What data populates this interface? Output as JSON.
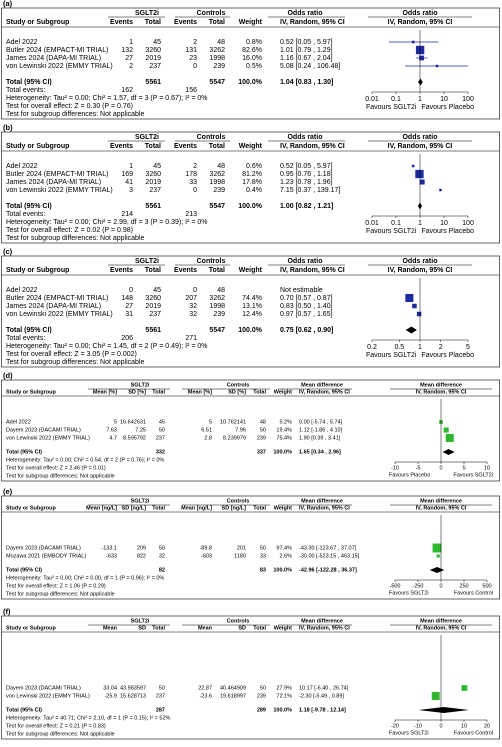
{
  "chart_data": [
    {
      "type": "forest",
      "panel_label": "(a)",
      "scale": "log",
      "color": "#1c2a9e",
      "group_headers": [
        "SGLT2i",
        "Controls",
        "Odds ratio",
        "Odds ratio"
      ],
      "columns": [
        "Study or Subgroup",
        "Events",
        "Total",
        "Events",
        "Total",
        "Weight",
        "IV, Random, 95% CI",
        "IV, Random, 95% CI"
      ],
      "studies": [
        {
          "name": "Adel 2022",
          "cells": [
            1,
            45,
            2,
            48
          ],
          "weight": 0.8,
          "weight_label": "0.8%",
          "estimate": 0.52,
          "ci": [
            0.05,
            5.97
          ],
          "ci_label": "0.52 [0.05 , 5.97]"
        },
        {
          "name": "Butler 2024 (EMPACT-MI TRIAL)",
          "cells": [
            132,
            3260,
            131,
            3262
          ],
          "weight": 82.6,
          "weight_label": "82.6%",
          "estimate": 1.01,
          "ci": [
            0.79,
            1.29
          ],
          "ci_label": "1.01 [0.79 , 1.29]"
        },
        {
          "name": "James 2024 (DAPA-MI TRIAL)",
          "cells": [
            27,
            2019,
            23,
            1998
          ],
          "weight": 16.0,
          "weight_label": "16.0%",
          "estimate": 1.16,
          "ci": [
            0.67,
            2.04
          ],
          "ci_label": "1.16 [0.67 , 2.04]"
        },
        {
          "name": "von Lewinski 2022 (EMMY TRIAL)",
          "cells": [
            2,
            237,
            0,
            239
          ],
          "weight": 0.5,
          "weight_label": "0.5%",
          "estimate": 5.08,
          "ci": [
            0.24,
            106.48
          ],
          "ci_label": "5.08 [0.24 , 106.48]"
        }
      ],
      "total": {
        "name": "Total (95% CI)",
        "cells": [
          null,
          5561,
          null,
          5547
        ],
        "weight": 100,
        "weight_label": "100.0%",
        "estimate": 1.04,
        "ci": [
          0.83,
          1.3
        ],
        "ci_label": "1.04 [0.83 , 1.30]"
      },
      "total_events": {
        "name": "Total events:",
        "cells": [
          162,
          null,
          156,
          null
        ]
      },
      "footnotes": [
        "Heterogeneity: Tau² = 0.00; Chi² = 1.57, df = 3 (P = 0.67); I² = 0%",
        "Test for overall effect: Z = 0.30 (P = 0.76)",
        "Test for subgroup differences: Not applicable"
      ],
      "xlim": [
        0.01,
        100
      ],
      "xticks": [
        0.01,
        0.1,
        1,
        10,
        100
      ],
      "favours": [
        "Favours SGLT2i",
        "Favours Placebo"
      ]
    },
    {
      "type": "forest",
      "panel_label": "(b)",
      "scale": "log",
      "color": "#1c2a9e",
      "group_headers": [
        "SGLT2i",
        "Controls",
        "Odds ratio",
        "Odds ratio"
      ],
      "columns": [
        "Study or Subgroup",
        "Events",
        "Total",
        "Events",
        "Total",
        "Weight",
        "IV, Random, 95% CI",
        "IV, Random, 95% CI"
      ],
      "studies": [
        {
          "name": "Adel 2022",
          "cells": [
            1,
            45,
            2,
            48
          ],
          "weight": 0.6,
          "weight_label": "0.6%",
          "estimate": 0.52,
          "ci": [
            0.05,
            5.97
          ],
          "ci_label": "0.52 [0.05 , 5.97]"
        },
        {
          "name": "Butler 2024 (EMPACT-MI TRIAL)",
          "cells": [
            169,
            3260,
            178,
            3262
          ],
          "weight": 81.2,
          "weight_label": "81.2%",
          "estimate": 0.95,
          "ci": [
            0.76,
            1.18
          ],
          "ci_label": "0.95 [0.76 , 1.18]"
        },
        {
          "name": "James 2024 (DAPA-MI TRIAL)",
          "cells": [
            41,
            2019,
            33,
            1998
          ],
          "weight": 17.8,
          "weight_label": "17.8%",
          "estimate": 1.23,
          "ci": [
            0.78,
            1.96
          ],
          "ci_label": "1.23 [0.78 , 1.96]"
        },
        {
          "name": "von Lewinski 2022 (EMMY TRIAL)",
          "cells": [
            3,
            237,
            0,
            239
          ],
          "weight": 0.4,
          "weight_label": "0.4%",
          "estimate": 7.15,
          "ci": [
            0.37,
            139.17
          ],
          "ci_label": "7.15 [0.37 , 139.17]"
        }
      ],
      "total": {
        "name": "Total (95% CI)",
        "cells": [
          null,
          5561,
          null,
          5547
        ],
        "weight": 100,
        "weight_label": "100.0%",
        "estimate": 1.0,
        "ci": [
          0.82,
          1.21
        ],
        "ci_label": "1.00 [0.82 , 1.21]"
      },
      "total_events": {
        "name": "Total events:",
        "cells": [
          214,
          null,
          213,
          null
        ]
      },
      "footnotes": [
        "Heterogeneity: Tau² = 0.00; Chi² = 2.99, df = 3 (P = 0.39); I² = 0%",
        "Test for overall effect: Z = 0.02 (P = 0.98)",
        "Test for subgroup differences: Not applicable"
      ],
      "xlim": [
        0.01,
        100
      ],
      "xticks": [
        0.01,
        0.1,
        1,
        10,
        100
      ],
      "favours": [
        "Favours SGLT2i",
        "Favours Placebo"
      ]
    },
    {
      "type": "forest",
      "panel_label": "(c)",
      "scale": "log",
      "color": "#1c2a9e",
      "group_headers": [
        "SGLT2i",
        "Controls",
        "Odds ratio",
        "Odds ratio"
      ],
      "columns": [
        "Study or Subgroup",
        "Events",
        "Total",
        "Events",
        "Total",
        "Weight",
        "IV, Random, 95% CI",
        "IV, Random, 95% CI"
      ],
      "studies": [
        {
          "name": "Adel 2022",
          "cells": [
            0,
            45,
            0,
            48
          ],
          "ci_label": "Not estimable"
        },
        {
          "name": "Butler 2024 (EMPACT-MI TRIAL)",
          "cells": [
            148,
            3260,
            207,
            3262
          ],
          "weight": 74.4,
          "weight_label": "74.4%",
          "estimate": 0.7,
          "ci": [
            0.57,
            0.87
          ],
          "ci_label": "0.70 [0.57 , 0.87]"
        },
        {
          "name": "James 2024 (DAPA-MI TRIAL)",
          "cells": [
            27,
            2019,
            32,
            1998
          ],
          "weight": 13.1,
          "weight_label": "13.1%",
          "estimate": 0.83,
          "ci": [
            0.5,
            1.4
          ],
          "ci_label": "0.83 [0.50 , 1.40]"
        },
        {
          "name": "von Lewinski 2022 (EMMY TRIAL)",
          "cells": [
            31,
            237,
            32,
            239
          ],
          "weight": 12.4,
          "weight_label": "12.4%",
          "estimate": 0.97,
          "ci": [
            0.57,
            1.65
          ],
          "ci_label": "0.97 [0.57 , 1.65]"
        }
      ],
      "total": {
        "name": "Total (95% CI)",
        "cells": [
          null,
          5561,
          null,
          5547
        ],
        "weight": 100,
        "weight_label": "100.0%",
        "estimate": 0.75,
        "ci": [
          0.62,
          0.9
        ],
        "ci_label": "0.75 [0.62 , 0.90]"
      },
      "total_events": {
        "name": "Total events:",
        "cells": [
          206,
          null,
          271,
          null
        ]
      },
      "footnotes": [
        "Heterogeneity: Tau² = 0.00; Chi² = 1.45, df = 2 (P = 0.49); I² = 0%",
        "Test for overall effect: Z = 3.05 (P = 0.002)",
        "Test for subgroup differences: Not applicable"
      ],
      "xlim": [
        0.2,
        5
      ],
      "xticks": [
        0.2,
        0.5,
        1,
        2,
        5
      ],
      "favours": [
        "Favours SGLT2i",
        "Favours Placebo"
      ]
    },
    {
      "type": "forest",
      "panel_label": "(d)",
      "scale": "linear",
      "color": "#2fb82f",
      "group_headers": [
        "SGLT2i",
        "Controls",
        "Mean difference",
        "Mean difference"
      ],
      "columns": [
        "Study or Subgroup",
        "Mean [%]",
        "SD [%]",
        "Total",
        "Mean [%]",
        "SD [%]",
        "Total",
        "Weight",
        "IV, Random, 95% CI",
        "IV, Random, 95% CI"
      ],
      "studies": [
        {
          "name": "Adel 2022",
          "cells": [
            5,
            16.642631,
            45,
            5,
            10.762141,
            48
          ],
          "weight": 5.2,
          "weight_label": "5.2%",
          "estimate": 0,
          "ci": [
            -5.74,
            5.74
          ],
          "ci_label": "0.00 [-5.74 , 5.74]"
        },
        {
          "name": "Dayem 2023 (DACAMI TRIAL)",
          "cells": [
            7.63,
            7.25,
            50,
            6.51,
            7.96,
            50
          ],
          "weight": 19.4,
          "weight_label": "19.4%",
          "estimate": 1.12,
          "ci": [
            -1.86,
            4.1
          ],
          "ci_label": "1.12 [-1.86 , 4.10]"
        },
        {
          "name": "von Lewinski 2022 (EMMY TRIAL)",
          "cells": [
            4.7,
            8.595792,
            237,
            2.8,
            8.239979,
            239
          ],
          "weight": 75.4,
          "weight_label": "75.4%",
          "estimate": 1.9,
          "ci": [
            0.39,
            3.41
          ],
          "ci_label": "1.90 [0.39 , 3.41]"
        }
      ],
      "total": {
        "name": "Total (95% CI)",
        "cells": [
          null,
          null,
          332,
          null,
          null,
          337
        ],
        "weight": 100,
        "weight_label": "100.0%",
        "estimate": 1.65,
        "ci": [
          0.34,
          2.96
        ],
        "ci_label": "1.65 [0.34 , 2.96]"
      },
      "footnotes": [
        "Heterogeneity: Tau² = 0.00; Chi² = 0.54, df = 2 (P = 0.76); I² = 0%",
        "Test for overall effect: Z = 2.46 (P = 0.01)",
        "Test for subgroup differences: Not applicable"
      ],
      "xlim": [
        -10,
        10
      ],
      "xticks": [
        -10,
        -5,
        0,
        5,
        10
      ],
      "favours": [
        "Favours Placebo",
        "Favours SGLT2i"
      ]
    },
    {
      "type": "forest",
      "panel_label": "(e)",
      "scale": "linear",
      "color": "#2fb82f",
      "group_headers": [
        "SGLT2i",
        "Controls",
        "Mean difference",
        "Mean difference"
      ],
      "columns": [
        "Study or Subgroup",
        "Mean [ng/L]",
        "SD [ng/L]",
        "Total",
        "Mean [ng/L]",
        "SD [ng/L]",
        "Total",
        "Weight",
        "IV, Random, 95% CI",
        "IV, Random, 95% CI"
      ],
      "studies": [
        {
          "name": "Dayem 2023 (DACAMI TRIAL)",
          "cells": [
            -133.1,
            209,
            50,
            -89.8,
            201,
            50
          ],
          "weight": 97.4,
          "weight_label": "97.4%",
          "estimate": -43.3,
          "ci": [
            -123.67,
            37.07
          ],
          "ci_label": "-43.30 [-123.67 , 37.07]"
        },
        {
          "name": "Mozawa 2021 (EMBODY TRIAL)",
          "cells": [
            -633,
            822,
            32,
            -603,
            1180,
            33
          ],
          "weight": 2.6,
          "weight_label": "2.6%",
          "estimate": -30.0,
          "ci": [
            -523.15,
            463.15
          ],
          "ci_label": "-30.00 [-523.15 , 463.15]"
        }
      ],
      "total": {
        "name": "Total (95% CI)",
        "cells": [
          null,
          null,
          82,
          null,
          null,
          83
        ],
        "weight": 100,
        "weight_label": "100.0%",
        "estimate": -42.96,
        "ci": [
          -122.28,
          36.37
        ],
        "ci_label": "-42.96 [-122.28 , 36.37]"
      },
      "footnotes": [
        "Heterogeneity: Tau² = 0.00; Chi² = 0.00, df = 1 (P = 0.96); I² = 0%",
        "Test for overall effect: Z = 1.06 (P = 0.29)",
        "Test for subgroup differences: Not applicable"
      ],
      "xlim": [
        -500,
        500
      ],
      "xticks": [
        -500,
        -250,
        0,
        250,
        500
      ],
      "favours": [
        "Favours SGLT2i",
        "Favours Control"
      ]
    },
    {
      "type": "forest",
      "panel_label": "(f)",
      "scale": "linear",
      "color": "#2fb82f",
      "group_headers": [
        "SGLT2i",
        "Controls",
        "Mean difference",
        "Mean difference"
      ],
      "columns": [
        "Study or Subgroup",
        "Mean",
        "SD",
        "Total",
        "Mean",
        "SD",
        "Total",
        "Weight",
        "IV, Random, 95% CI",
        "IV, Random, 95% CI"
      ],
      "studies": [
        {
          "name": "Dayem 2023 (DACAMI TRIAL)",
          "cells": [
            33.04,
            43.983597,
            50,
            22.87,
            40.464909,
            50
          ],
          "weight": 27.9,
          "weight_label": "27.9%",
          "estimate": 10.17,
          "ci": [
            -6.4,
            26.74
          ],
          "ci_label": "10.17 [-6.40 , 26.74]"
        },
        {
          "name": "von Lewinski 2022 (EMMY TRIAL)",
          "cells": [
            -25.9,
            15.628713,
            237,
            -23.6,
            19.618997,
            239
          ],
          "weight": 72.1,
          "weight_label": "72.1%",
          "estimate": -2.3,
          "ci": [
            -5.49,
            0.89
          ],
          "ci_label": "-2.30 [-5.49 , 0.89]"
        }
      ],
      "total": {
        "name": "Total (95% CI)",
        "cells": [
          null,
          null,
          287,
          null,
          null,
          289
        ],
        "weight": 100,
        "weight_label": "100.0%",
        "estimate": 1.18,
        "ci": [
          -9.78,
          12.14
        ],
        "ci_label": "1.18 [-9.78 , 12.14]"
      },
      "footnotes": [
        "Heterogeneity: Tau² = 40.71; Chi² = 2.10, df = 1 (P = 0.15); I² = 52%",
        "Test for overall effect: Z = 0.21 (P = 0.83)",
        "Test for subgroup differences: Not applicable"
      ],
      "xlim": [
        -20,
        20
      ],
      "xticks": [
        -20,
        -10,
        0,
        10,
        20
      ],
      "favours": [
        "Favours SGLT2i",
        "Favours Control"
      ]
    }
  ]
}
